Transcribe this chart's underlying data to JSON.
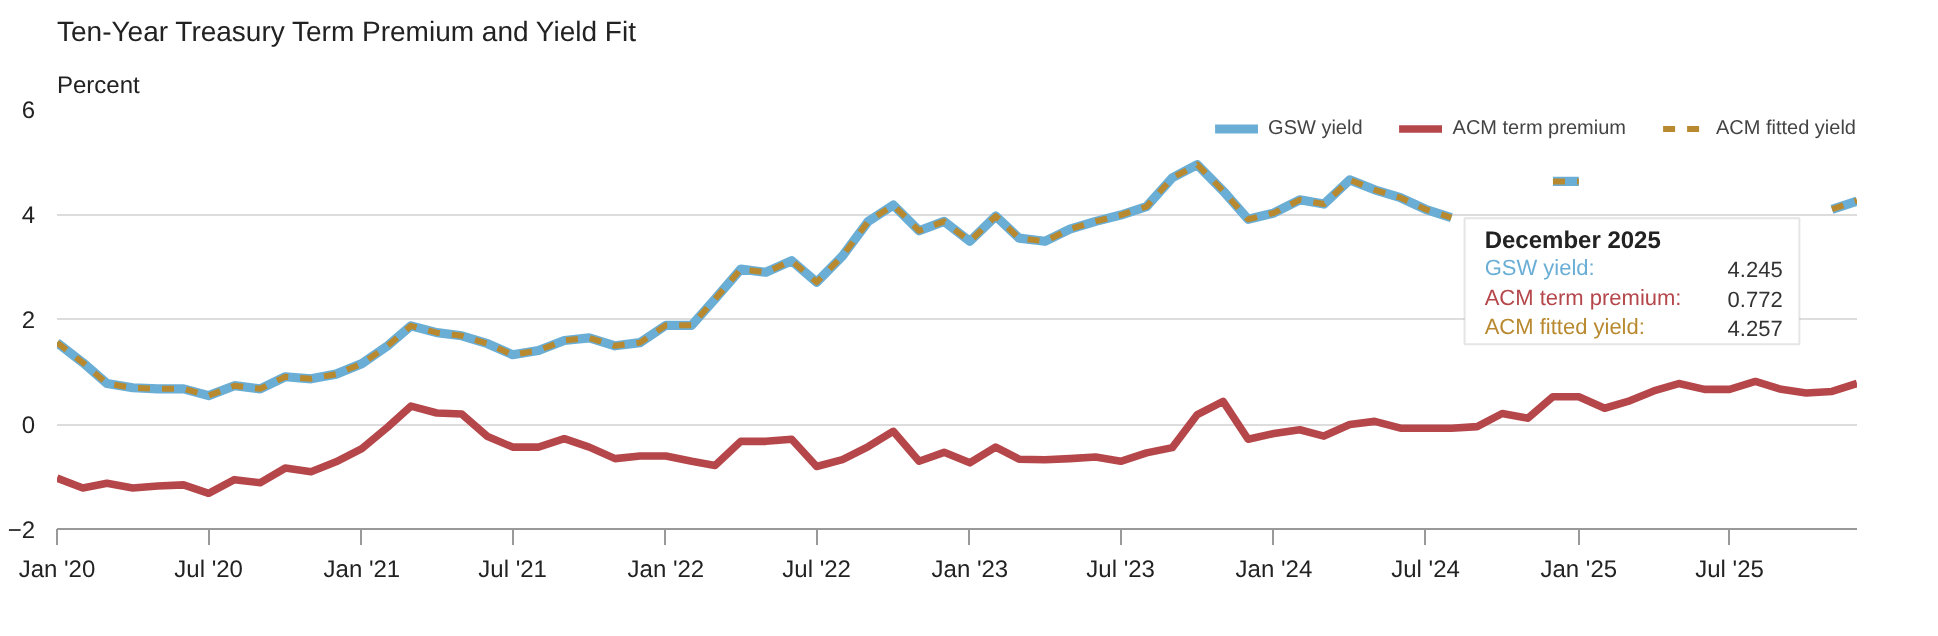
{
  "chart_data": {
    "type": "line",
    "title": "Ten-Year Treasury Term Premium and Yield Fit",
    "ylabel": "Percent",
    "x": [
      "2020-01",
      "2020-02",
      "2020-03",
      "2020-04",
      "2020-05",
      "2020-06",
      "2020-07",
      "2020-08",
      "2020-09",
      "2020-10",
      "2020-11",
      "2020-12",
      "2021-01",
      "2021-02",
      "2021-03",
      "2021-04",
      "2021-05",
      "2021-06",
      "2021-07",
      "2021-08",
      "2021-09",
      "2021-10",
      "2021-11",
      "2021-12",
      "2022-01",
      "2022-02",
      "2022-03",
      "2022-04",
      "2022-05",
      "2022-06",
      "2022-07",
      "2022-08",
      "2022-09",
      "2022-10",
      "2022-11",
      "2022-12",
      "2023-01",
      "2023-02",
      "2023-03",
      "2023-04",
      "2023-05",
      "2023-06",
      "2023-07",
      "2023-08",
      "2023-09",
      "2023-10",
      "2023-11",
      "2023-12",
      "2024-01",
      "2024-02",
      "2024-03",
      "2024-04",
      "2024-05",
      "2024-06",
      "2024-07",
      "2024-08",
      "2024-09",
      "2024-10",
      "2024-11",
      "2024-12",
      "2025-01",
      "2025-02",
      "2025-03",
      "2025-04",
      "2025-05",
      "2025-06",
      "2025-07",
      "2025-08",
      "2025-09",
      "2025-10",
      "2025-11",
      "2025-12"
    ],
    "series": [
      {
        "name": "GSW yield",
        "color": "#6aaed6",
        "line_style": "solid",
        "values": [
          1.55,
          1.17,
          0.77,
          0.69,
          0.67,
          0.67,
          0.54,
          0.73,
          0.67,
          0.9,
          0.86,
          0.95,
          1.15,
          1.49,
          1.87,
          1.74,
          1.68,
          1.53,
          1.32,
          1.4,
          1.59,
          1.64,
          1.49,
          1.55,
          1.88,
          1.88,
          2.38,
          2.95,
          2.89,
          3.11,
          2.7,
          3.2,
          3.86,
          4.17,
          3.68,
          3.86,
          3.48,
          3.96,
          3.54,
          3.48,
          3.71,
          3.86,
          3.98,
          4.14,
          4.69,
          4.94,
          4.44,
          3.9,
          4.02,
          4.27,
          4.19,
          4.65,
          4.46,
          4.31,
          4.09,
          3.93,
          null,
          null,
          null,
          4.62,
          4.62,
          null,
          null,
          null,
          null,
          null,
          null,
          null,
          null,
          null,
          4.09,
          4.245
        ]
      },
      {
        "name": "ACM term premium",
        "color": "#b5474b",
        "line_style": "solid",
        "values": [
          -1.03,
          -1.22,
          -1.13,
          -1.22,
          -1.18,
          -1.16,
          -1.32,
          -1.06,
          -1.12,
          -0.84,
          -0.91,
          -0.72,
          -0.47,
          -0.06,
          0.34,
          0.21,
          0.19,
          -0.24,
          -0.44,
          -0.44,
          -0.28,
          -0.44,
          -0.66,
          -0.61,
          -0.61,
          -0.71,
          -0.79,
          -0.33,
          -0.33,
          -0.29,
          -0.81,
          -0.68,
          -0.43,
          -0.14,
          -0.71,
          -0.54,
          -0.74,
          -0.44,
          -0.67,
          -0.68,
          -0.66,
          -0.63,
          -0.71,
          -0.55,
          -0.45,
          0.18,
          0.43,
          -0.29,
          -0.18,
          -0.11,
          -0.23,
          -0.01,
          0.05,
          -0.08,
          -0.08,
          -0.08,
          -0.05,
          0.2,
          0.11,
          0.52,
          0.52,
          0.3,
          0.43,
          0.63,
          0.77,
          0.66,
          0.66,
          0.81,
          0.66,
          0.59,
          0.62,
          0.772
        ]
      },
      {
        "name": "ACM fitted yield",
        "color": "#b8892f",
        "line_style": "dashed",
        "values": [
          1.55,
          1.17,
          0.77,
          0.69,
          0.67,
          0.67,
          0.54,
          0.73,
          0.67,
          0.9,
          0.86,
          0.95,
          1.15,
          1.49,
          1.87,
          1.74,
          1.68,
          1.53,
          1.32,
          1.4,
          1.59,
          1.64,
          1.49,
          1.55,
          1.88,
          1.88,
          2.38,
          2.95,
          2.89,
          3.11,
          2.7,
          3.2,
          3.86,
          4.17,
          3.68,
          3.86,
          3.48,
          3.96,
          3.54,
          3.48,
          3.71,
          3.86,
          3.98,
          4.14,
          4.69,
          4.94,
          4.44,
          3.9,
          4.02,
          4.27,
          4.19,
          4.65,
          4.46,
          4.31,
          4.09,
          3.93,
          null,
          null,
          null,
          4.62,
          4.62,
          null,
          null,
          null,
          null,
          null,
          null,
          null,
          null,
          null,
          4.09,
          4.257
        ]
      }
    ],
    "xlim": [
      "2020-01",
      "2025-12"
    ],
    "xticks": [
      {
        "value": "2020-01",
        "label": "Jan '20"
      },
      {
        "value": "2020-07",
        "label": "Jul '20"
      },
      {
        "value": "2021-01",
        "label": "Jan '21"
      },
      {
        "value": "2021-07",
        "label": "Jul '21"
      },
      {
        "value": "2022-01",
        "label": "Jan '22"
      },
      {
        "value": "2022-07",
        "label": "Jul '22"
      },
      {
        "value": "2023-01",
        "label": "Jan '23"
      },
      {
        "value": "2023-07",
        "label": "Jul '23"
      },
      {
        "value": "2024-01",
        "label": "Jan '24"
      },
      {
        "value": "2024-07",
        "label": "Jul '24"
      },
      {
        "value": "2025-01",
        "label": "Jan '25"
      },
      {
        "value": "2025-07",
        "label": "Jul '25"
      }
    ],
    "ylim": [
      -2,
      6
    ],
    "yticks": [
      -2,
      0,
      2,
      4,
      6
    ],
    "grid": "y",
    "legend": "top right",
    "marker": "none",
    "annotations": [
      "December 2025",
      "GSW yield: 4.245",
      "ACM term premium: 0.772",
      "ACM fitted yield: 4.257"
    ]
  }
}
